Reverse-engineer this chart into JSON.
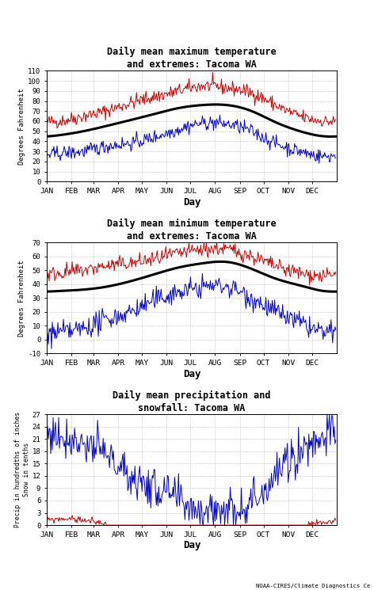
{
  "title1": "Daily mean maximum temperature\nand extremes: Tacoma WA",
  "title2": "Daily mean minimum temperature\nand extremes: Tacoma WA",
  "title3": "Daily mean precipitation and\nsnowfall: Tacoma WA",
  "ylabel1": "Degrees Fahrenheit",
  "ylabel2": "Degrees Fahrenheit",
  "ylabel3": "Precip in hundredths of inches\nSnow in tenths",
  "xlabel": "Day",
  "color_mean": "#000000",
  "color_extreme_high": "#cc0000",
  "color_extreme_low": "#0000cc",
  "color_precip": "#0000cc",
  "color_snow": "#cc0000",
  "background": "#ffffff",
  "grid_color": "#999999",
  "font_family": "monospace",
  "mean_linewidth": 2.2,
  "extreme_linewidth": 0.7,
  "ylim1": [
    0,
    110
  ],
  "ylim2": [
    -10,
    70
  ],
  "ylim3": [
    0,
    27
  ],
  "yticks1": [
    0,
    10,
    20,
    30,
    40,
    50,
    60,
    70,
    80,
    90,
    100,
    110
  ],
  "yticks2": [
    -10,
    0,
    10,
    20,
    30,
    40,
    50,
    60,
    70
  ],
  "yticks3": [
    0,
    3,
    6,
    9,
    12,
    15,
    18,
    21,
    24,
    27
  ],
  "month_labels": [
    "JAN",
    "FEB",
    "MAR",
    "APR",
    "MAY",
    "JUN",
    "JUL",
    "AUG",
    "SEP",
    "OCT",
    "NOV",
    "DEC"
  ],
  "month_positions": [
    0,
    31,
    59,
    90,
    120,
    151,
    181,
    212,
    243,
    273,
    304,
    334
  ],
  "monthly_mean_max": [
    46,
    50,
    55,
    61,
    67,
    73,
    76,
    76,
    70,
    59,
    50,
    45
  ],
  "monthly_mean_min": [
    35,
    36,
    38,
    42,
    47,
    52,
    55,
    56,
    51,
    44,
    39,
    35
  ],
  "monthly_record_high_max": [
    60,
    65,
    70,
    78,
    84,
    90,
    95,
    93,
    88,
    76,
    65,
    60
  ],
  "monthly_record_low_max": [
    28,
    30,
    35,
    38,
    44,
    52,
    58,
    57,
    50,
    38,
    30,
    25
  ],
  "monthly_record_high_min": [
    48,
    50,
    53,
    55,
    58,
    62,
    65,
    65,
    60,
    53,
    48,
    46
  ],
  "monthly_record_low_min": [
    5,
    8,
    14,
    20,
    28,
    34,
    38,
    38,
    30,
    20,
    12,
    5
  ],
  "monthly_precip": [
    22,
    20,
    17,
    12,
    9,
    6,
    4,
    4,
    6,
    12,
    18,
    22
  ],
  "monthly_snow": [
    1.5,
    1.2,
    0.4,
    0.0,
    0.0,
    0.0,
    0.0,
    0.0,
    0.0,
    0.0,
    0.1,
    0.6
  ]
}
